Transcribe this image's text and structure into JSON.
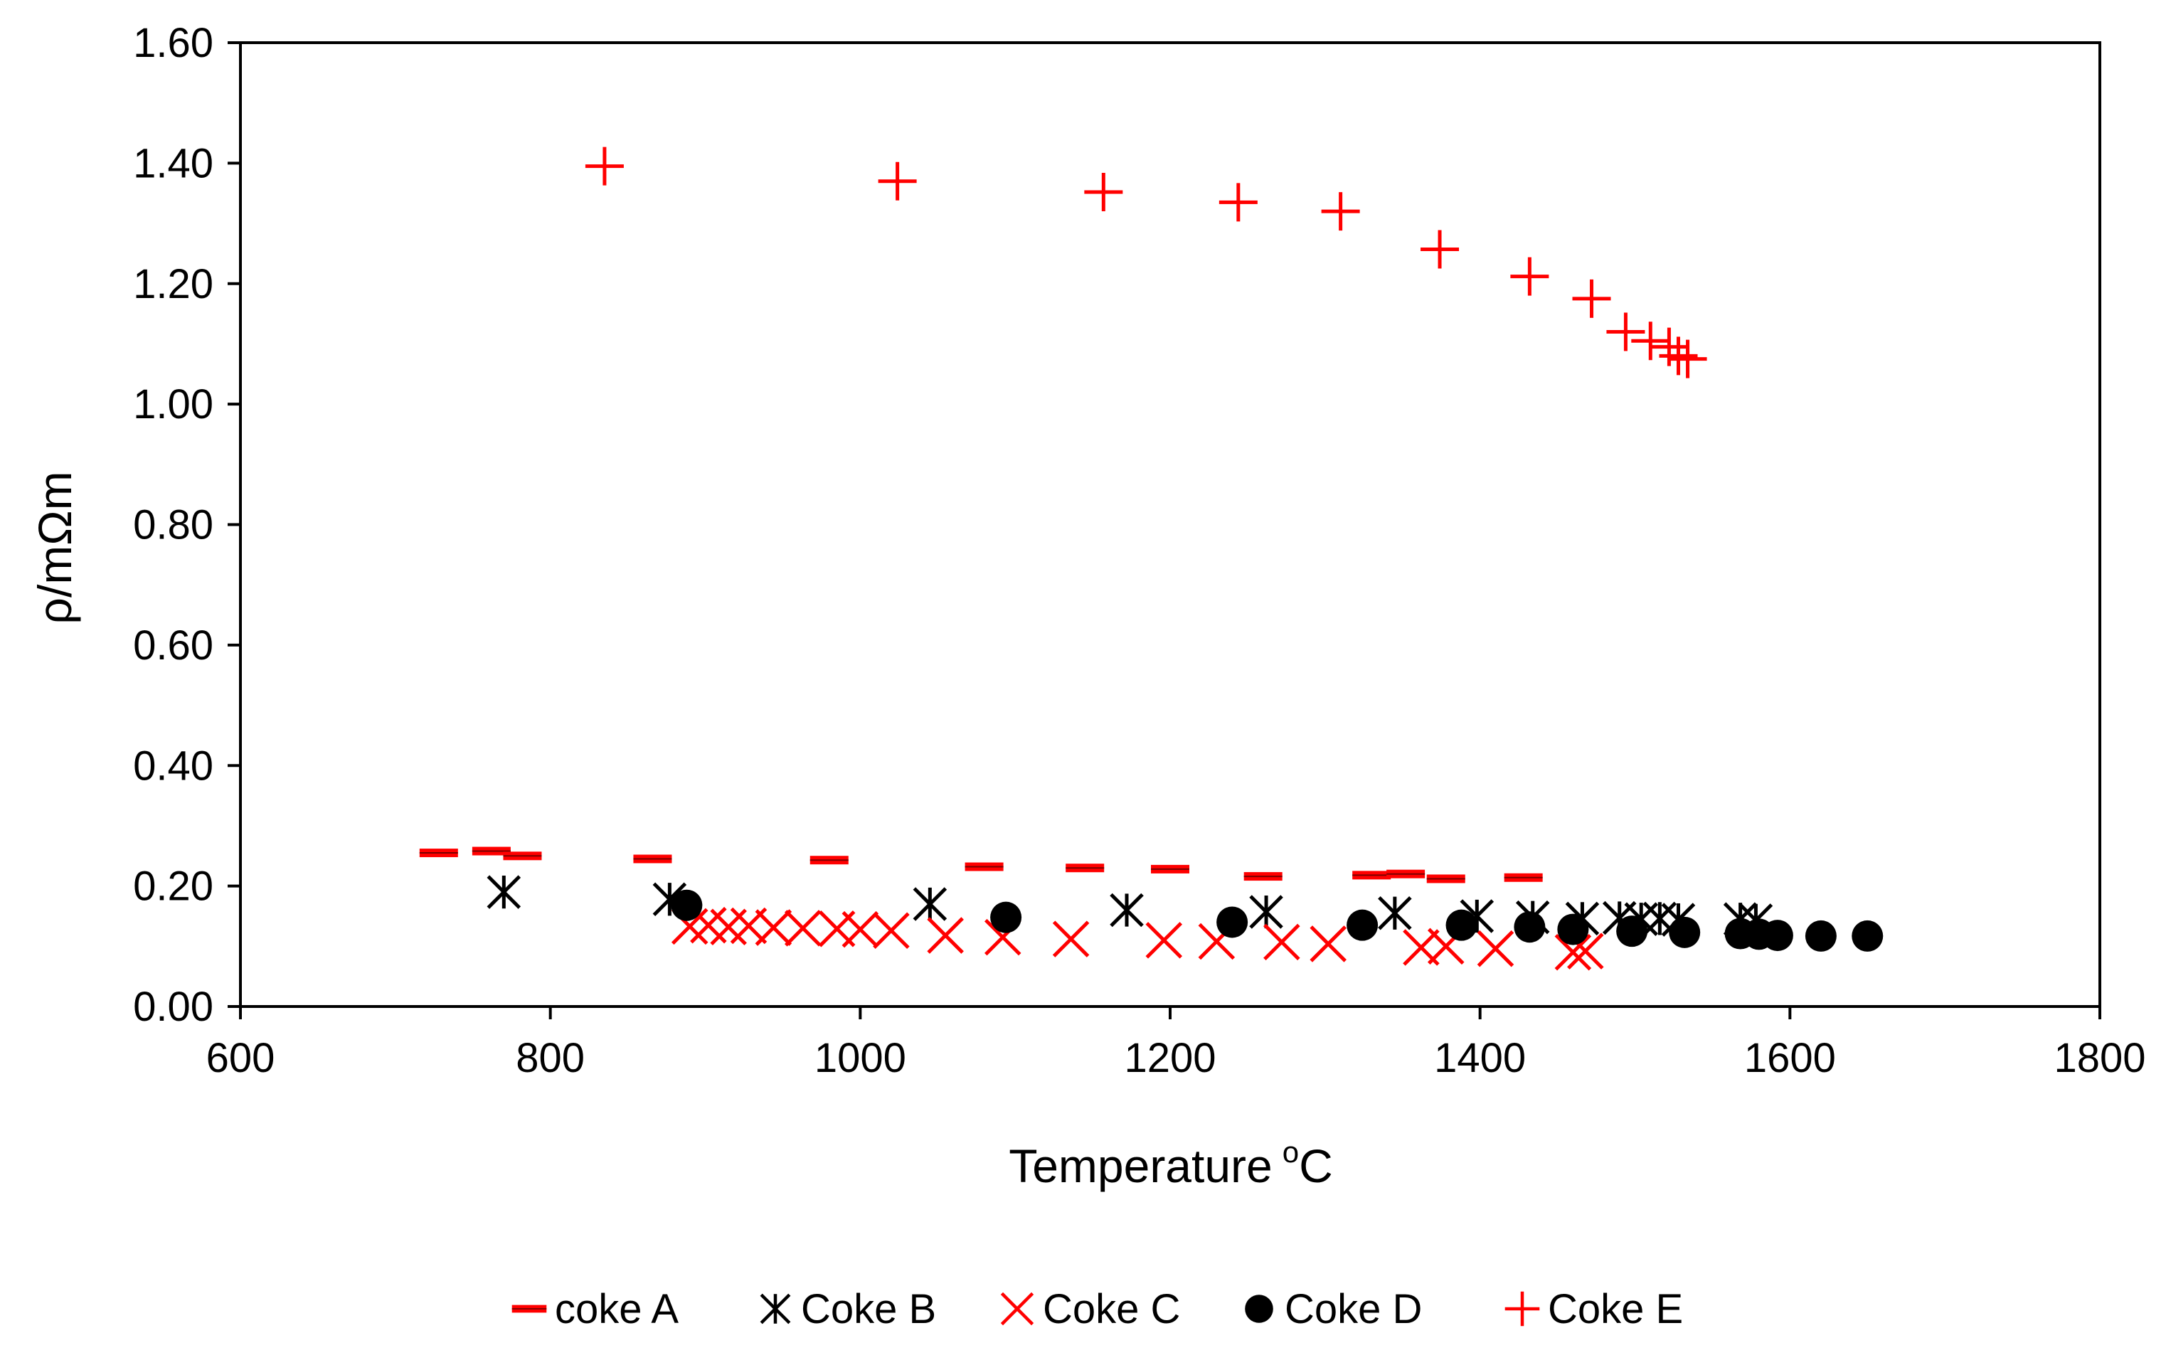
{
  "chart_data": {
    "type": "scatter",
    "title": "",
    "xlabel": "Temperature",
    "xlabel_superscript": "o",
    "xlabel_unit": "C",
    "ylabel": "ρ/mΩm",
    "xlim": [
      600,
      1800
    ],
    "ylim": [
      0,
      1.6
    ],
    "x_ticks": [
      600,
      800,
      1000,
      1200,
      1400,
      1600,
      1800
    ],
    "x_tick_labels": [
      "600",
      "800",
      "1000",
      "1200",
      "1400",
      "1600",
      "1800"
    ],
    "y_ticks": [
      0,
      0.2,
      0.4,
      0.6,
      0.8,
      1.0,
      1.2,
      1.4,
      1.6
    ],
    "y_tick_labels": [
      "0.00",
      "0.20",
      "0.40",
      "0.60",
      "0.80",
      "1.00",
      "1.20",
      "1.40",
      "1.60"
    ],
    "grid": false,
    "legend_position": "bottom",
    "series": [
      {
        "name": "coke A",
        "marker": "dash",
        "color": "#ff0000",
        "x": [
          728,
          762,
          782,
          866,
          980,
          1080,
          1145,
          1200,
          1260,
          1330,
          1352,
          1378,
          1428
        ],
        "y": [
          0.255,
          0.258,
          0.25,
          0.245,
          0.243,
          0.232,
          0.23,
          0.228,
          0.216,
          0.218,
          0.22,
          0.212,
          0.214
        ]
      },
      {
        "name": "Coke B",
        "marker": "asterisk",
        "color": "#000000",
        "x": [
          770,
          877,
          1045,
          1172,
          1262,
          1345,
          1398,
          1434,
          1466,
          1490,
          1504,
          1516,
          1528,
          1568,
          1578
        ],
        "y": [
          0.19,
          0.178,
          0.17,
          0.16,
          0.157,
          0.155,
          0.15,
          0.148,
          0.146,
          0.147,
          0.145,
          0.146,
          0.144,
          0.145,
          0.143
        ]
      },
      {
        "name": "Coke C",
        "marker": "x",
        "color": "#ff0000",
        "x": [
          890,
          902,
          915,
          928,
          944,
          963,
          985,
          1000,
          1020,
          1055,
          1092,
          1136,
          1196,
          1230,
          1272,
          1302,
          1362,
          1378,
          1410,
          1460,
          1468
        ],
        "y": [
          0.133,
          0.135,
          0.132,
          0.134,
          0.131,
          0.13,
          0.129,
          0.128,
          0.126,
          0.118,
          0.115,
          0.112,
          0.11,
          0.108,
          0.107,
          0.104,
          0.098,
          0.1,
          0.096,
          0.09,
          0.092
        ]
      },
      {
        "name": "Coke D",
        "marker": "circle",
        "color": "#000000",
        "x": [
          888,
          1094,
          1240,
          1324,
          1388,
          1432,
          1460,
          1498,
          1532,
          1568,
          1580,
          1592,
          1620,
          1650
        ],
        "y": [
          0.168,
          0.148,
          0.14,
          0.135,
          0.135,
          0.132,
          0.128,
          0.125,
          0.123,
          0.121,
          0.12,
          0.118,
          0.117,
          0.117
        ]
      },
      {
        "name": "Coke E",
        "marker": "plus",
        "color": "#ff0000",
        "x": [
          835,
          1024,
          1157,
          1244,
          1310,
          1374,
          1432,
          1472,
          1494,
          1510,
          1522,
          1528,
          1534
        ],
        "y": [
          1.395,
          1.37,
          1.352,
          1.335,
          1.32,
          1.257,
          1.212,
          1.175,
          1.12,
          1.105,
          1.095,
          1.08,
          1.075
        ]
      }
    ]
  }
}
